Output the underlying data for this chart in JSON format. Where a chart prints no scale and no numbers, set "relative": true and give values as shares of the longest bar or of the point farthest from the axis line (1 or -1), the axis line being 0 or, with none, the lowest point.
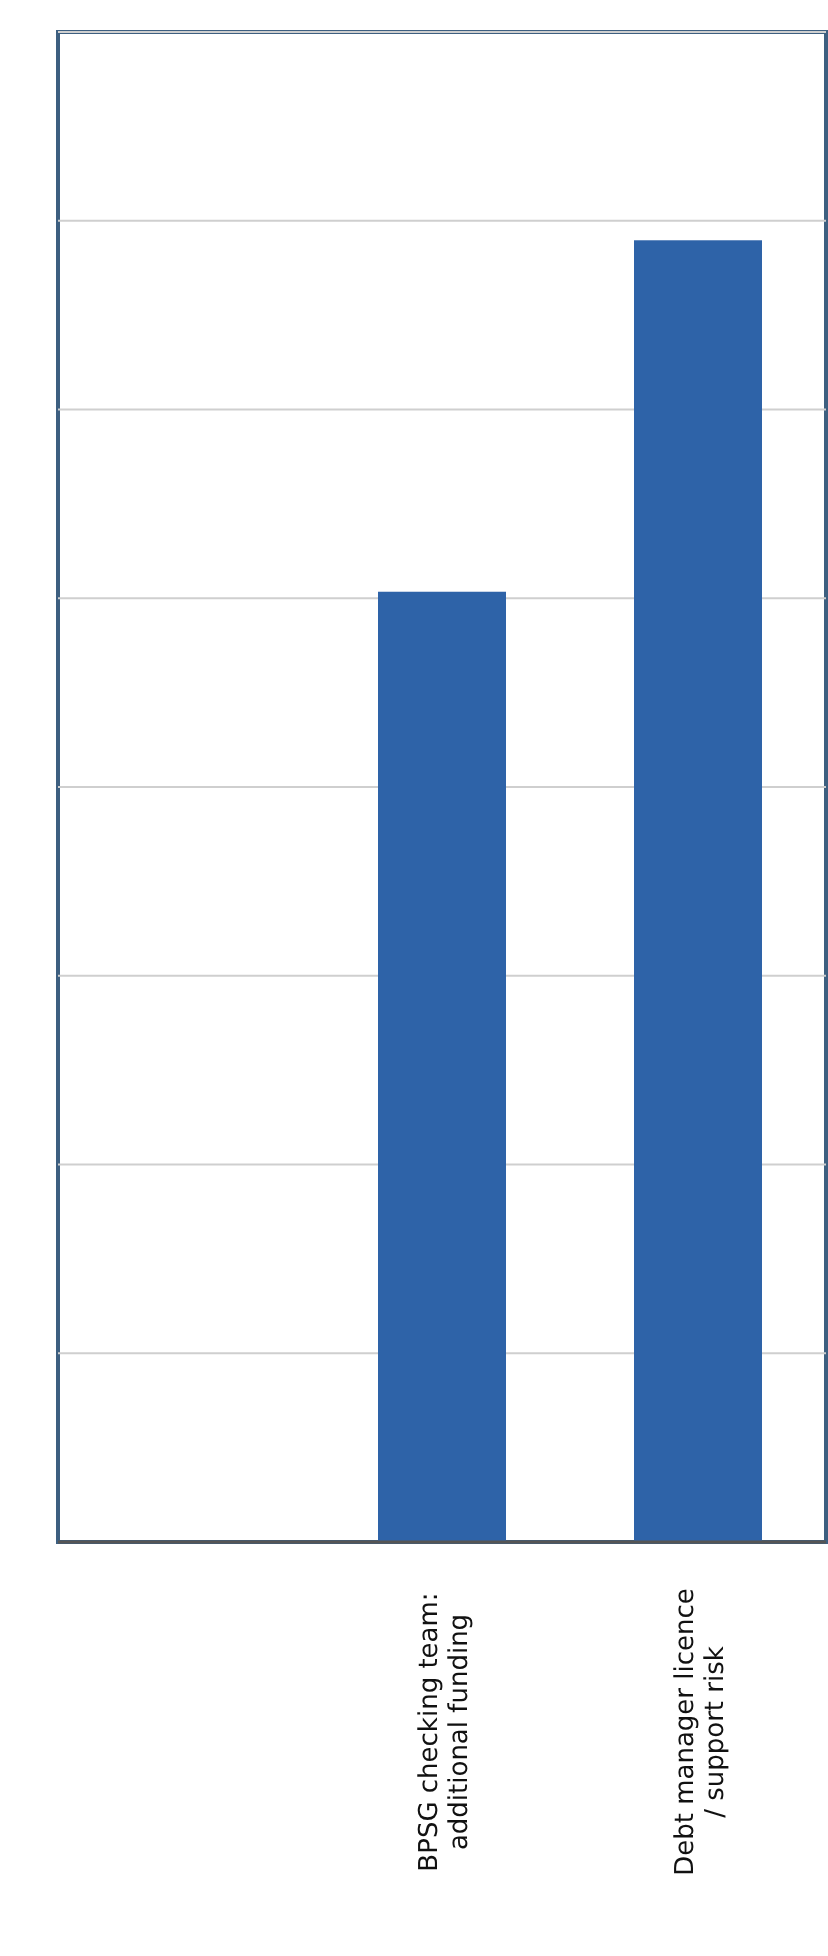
{
  "chart_data": {
    "type": "bar",
    "relative": true,
    "grid": "y",
    "categories": [
      null,
      "BPSG checking team:\nadditional funding",
      "Debt manager licence\n/ support risk"
    ],
    "values": [
      0,
      0.73,
      1
    ],
    "color": "#2e63a8"
  }
}
